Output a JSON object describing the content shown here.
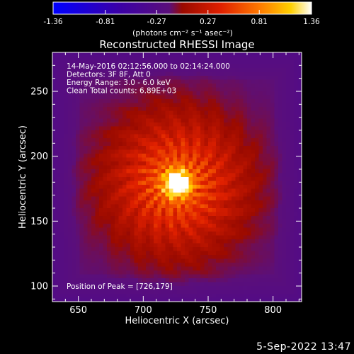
{
  "colorbar": {
    "ticks": [
      "-1.36",
      "-0.81",
      "-0.27",
      "0.27",
      "0.81",
      "1.36"
    ],
    "tick_values": [
      -1.36,
      -0.81,
      -0.27,
      0.27,
      0.81,
      1.36
    ],
    "range": [
      -1.36,
      1.36
    ],
    "units_label": "(photons cm⁻² s⁻¹ asec⁻²)"
  },
  "chart_data": {
    "type": "heatmap",
    "title": "Reconstructed RHESSI Image",
    "xlabel": "Heliocentric X (arcsec)",
    "ylabel": "Heliocentric Y (arcsec)",
    "xlim": [
      630,
      822
    ],
    "ylim": [
      88,
      280
    ],
    "xticks": [
      650,
      700,
      750,
      800
    ],
    "yticks": [
      100,
      150,
      200,
      250
    ],
    "peak": [
      726,
      179
    ],
    "info_lines": [
      "14-May-2016 02:12:56.000 to 02:14:24.000",
      "Detectors: 3F 8F, Att 0",
      "Energy Range: 3.0 - 6.0 keV",
      "Clean     Total counts: 6.89E+03"
    ],
    "peak_text": "Position of Peak = [726,179]",
    "colormap": [
      "#0000ff",
      "#3a00a8",
      "#5b0f7a",
      "#9a0a00",
      "#e02000",
      "#ff7a00",
      "#ffd000",
      "#ffffff"
    ]
  },
  "footer": {
    "timestamp": "5-Sep-2022 13:47"
  }
}
